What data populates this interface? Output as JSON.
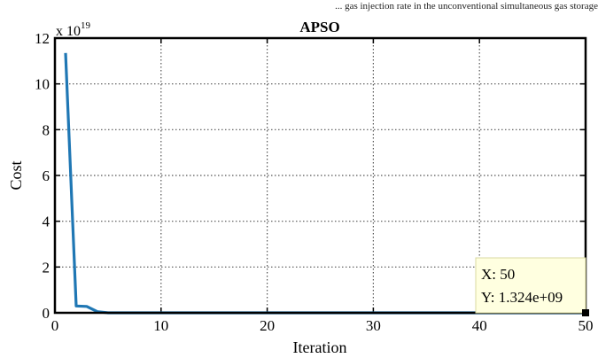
{
  "header_partial_text": "... gas injection rate in the unconventional simultaneous gas storage",
  "chart_data": {
    "type": "line",
    "title": "APSO",
    "xlabel": "Iteration",
    "ylabel": "Cost",
    "y_multiplier_label": "x 10",
    "y_multiplier_exponent": "19",
    "xlim": [
      0,
      50
    ],
    "ylim": [
      0,
      12
    ],
    "xticks": [
      0,
      10,
      20,
      30,
      40,
      50
    ],
    "yticks": [
      0,
      2,
      4,
      6,
      8,
      10,
      12
    ],
    "grid": true,
    "series": [
      {
        "color": "#1f77b4",
        "x": [
          1,
          2,
          3,
          4,
          5,
          6,
          8,
          10,
          15,
          20,
          25,
          30,
          35,
          40,
          45,
          50
        ],
        "y": [
          11.35,
          0.3,
          0.28,
          0.05,
          0.0,
          0.0,
          0.0,
          0.0,
          0.0,
          0.0,
          0.0,
          0.0,
          0.0,
          0.0,
          0.0,
          0.0
        ]
      }
    ],
    "datatip": {
      "x_label": "X: 50",
      "y_label": "Y: 1.324e+09",
      "x": 50,
      "y": 0.0
    }
  }
}
